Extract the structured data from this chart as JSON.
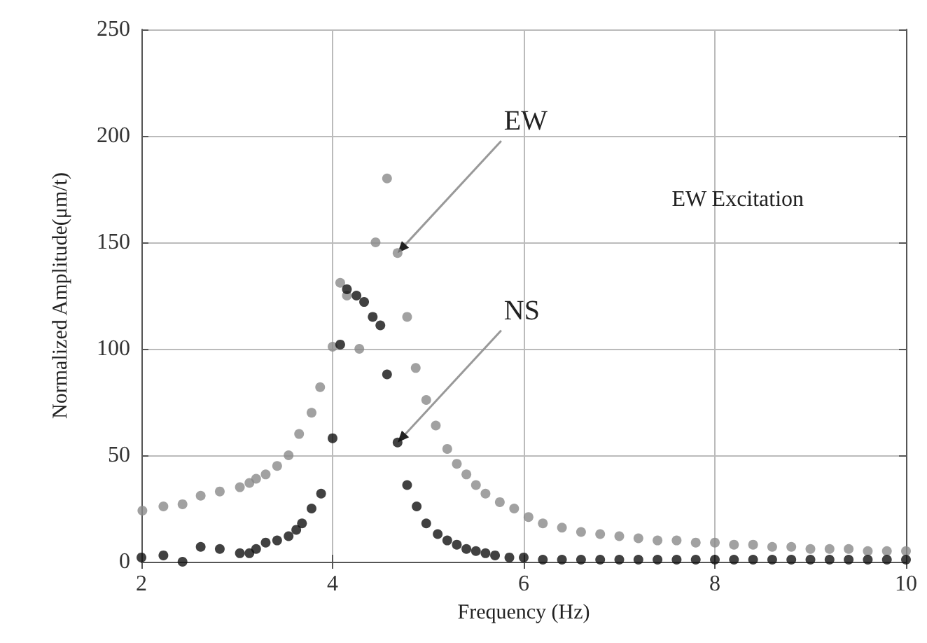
{
  "chart_data": {
    "type": "scatter",
    "xlabel": "Frequency (Hz)",
    "ylabel": "Normalized Amplitude(μm/t)",
    "xlim": [
      2,
      10
    ],
    "xticks": [
      2,
      4,
      6,
      8,
      10
    ],
    "ylim": [
      0,
      250
    ],
    "yticks": [
      0,
      50,
      100,
      150,
      200,
      250
    ],
    "grid": true,
    "marker": "circle",
    "annotations": [
      {
        "text": "EW",
        "x": 4.68,
        "y": 145
      },
      {
        "text": "NS",
        "x": 4.68,
        "y": 56
      },
      "EW Excitation"
    ],
    "series": [
      {
        "color": "#8a8a8a",
        "x": [
          2.01,
          2.23,
          2.43,
          2.62,
          2.82,
          3.03,
          3.13,
          3.2,
          3.3,
          3.42,
          3.54,
          3.65,
          3.78,
          3.87,
          4.0,
          4.08,
          4.15,
          4.28,
          4.45,
          4.57,
          4.68,
          4.78,
          4.87,
          4.98,
          5.08,
          5.2,
          5.3,
          5.4,
          5.5,
          5.6,
          5.75,
          5.9,
          6.05,
          6.2,
          6.4,
          6.6,
          6.8,
          7.0,
          7.2,
          7.4,
          7.6,
          7.8,
          8.0,
          8.2,
          8.4,
          8.6,
          8.8,
          9.0,
          9.2,
          9.4,
          9.6,
          9.8,
          10.0
        ],
        "values": [
          24,
          26,
          27,
          31,
          33,
          35,
          37,
          39,
          41,
          45,
          50,
          60,
          70,
          82,
          101,
          131,
          125,
          100,
          150,
          180,
          145,
          115,
          91,
          76,
          64,
          53,
          46,
          41,
          36,
          32,
          28,
          25,
          21,
          18,
          16,
          14,
          13,
          12,
          11,
          10,
          10,
          9,
          9,
          8,
          8,
          7,
          7,
          6,
          6,
          6,
          5,
          5,
          5
        ]
      },
      {
        "color": "#111111",
        "x": [
          2.0,
          2.23,
          2.43,
          2.62,
          2.82,
          3.03,
          3.13,
          3.2,
          3.3,
          3.42,
          3.54,
          3.62,
          3.68,
          3.78,
          3.88,
          4.0,
          4.08,
          4.15,
          4.25,
          4.33,
          4.42,
          4.5,
          4.57,
          4.68,
          4.78,
          4.88,
          4.98,
          5.1,
          5.2,
          5.3,
          5.4,
          5.5,
          5.6,
          5.7,
          5.85,
          6.0,
          6.2,
          6.4,
          6.6,
          6.8,
          7.0,
          7.2,
          7.4,
          7.6,
          7.8,
          8.0,
          8.2,
          8.4,
          8.6,
          8.8,
          9.0,
          9.2,
          9.4,
          9.6,
          9.8,
          10.0
        ],
        "values": [
          2,
          3,
          0,
          7,
          6,
          4,
          4,
          6,
          9,
          10,
          12,
          15,
          18,
          25,
          32,
          58,
          102,
          128,
          125,
          122,
          115,
          111,
          88,
          56,
          36,
          26,
          18,
          13,
          10,
          8,
          6,
          5,
          4,
          3,
          2,
          2,
          1,
          1,
          1,
          1,
          1,
          1,
          1,
          1,
          1,
          1,
          1,
          1,
          1,
          1,
          1,
          1,
          1,
          1,
          1,
          1
        ]
      }
    ]
  }
}
